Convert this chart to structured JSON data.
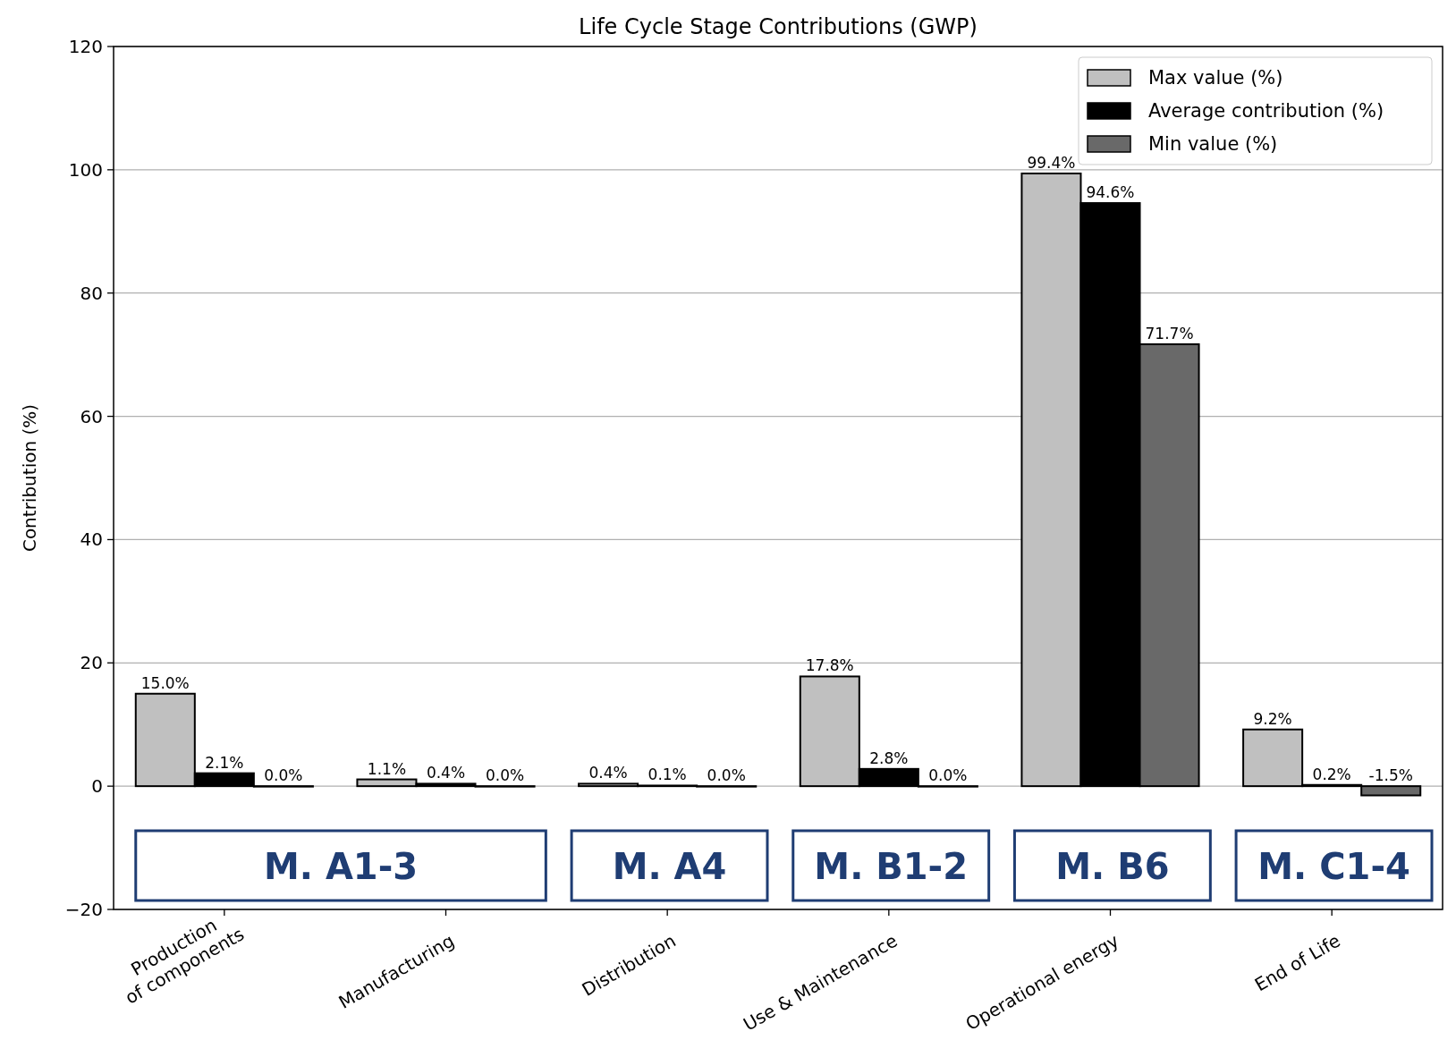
{
  "chart_data": {
    "type": "bar",
    "title": "Life Cycle Stage Contributions (GWP)",
    "ylabel": "Contribution (%)",
    "categories": [
      "Production\nof components",
      "Manufacturing",
      "Distribution",
      "Use & Maintenance",
      "Operational energy",
      "End of Life"
    ],
    "series": [
      {
        "name": "Max value (%)",
        "color": "#c0c0c0",
        "values": [
          15.0,
          1.1,
          0.4,
          17.8,
          99.4,
          9.2
        ],
        "value_labels": [
          "15.0%",
          "1.1%",
          "0.4%",
          "17.8%",
          "99.4%",
          "9.2%"
        ]
      },
      {
        "name": "Average contribution (%)",
        "color": "#000000",
        "values": [
          2.1,
          0.4,
          0.1,
          2.8,
          94.6,
          0.2
        ],
        "value_labels": [
          "2.1%",
          "0.4%",
          "0.1%",
          "2.8%",
          "94.6%",
          "0.2%"
        ]
      },
      {
        "name": "Min value (%)",
        "color": "#696969",
        "values": [
          0.0,
          0.0,
          0.0,
          0.0,
          71.7,
          -1.5
        ],
        "value_labels": [
          "0.0%",
          "0.0%",
          "0.0%",
          "0.0%",
          "71.7%",
          "-1.5%"
        ]
      }
    ],
    "ylim": [
      -20,
      120
    ],
    "yticks": [
      {
        "value": -20,
        "label": "−20"
      },
      0,
      20,
      40,
      60,
      80,
      100,
      120
    ],
    "grid": "y",
    "legend": "top right",
    "annotations": [
      "M. A1-3",
      "M. A4",
      "M. B1-2",
      "M. B6",
      "M. C1-4"
    ]
  }
}
